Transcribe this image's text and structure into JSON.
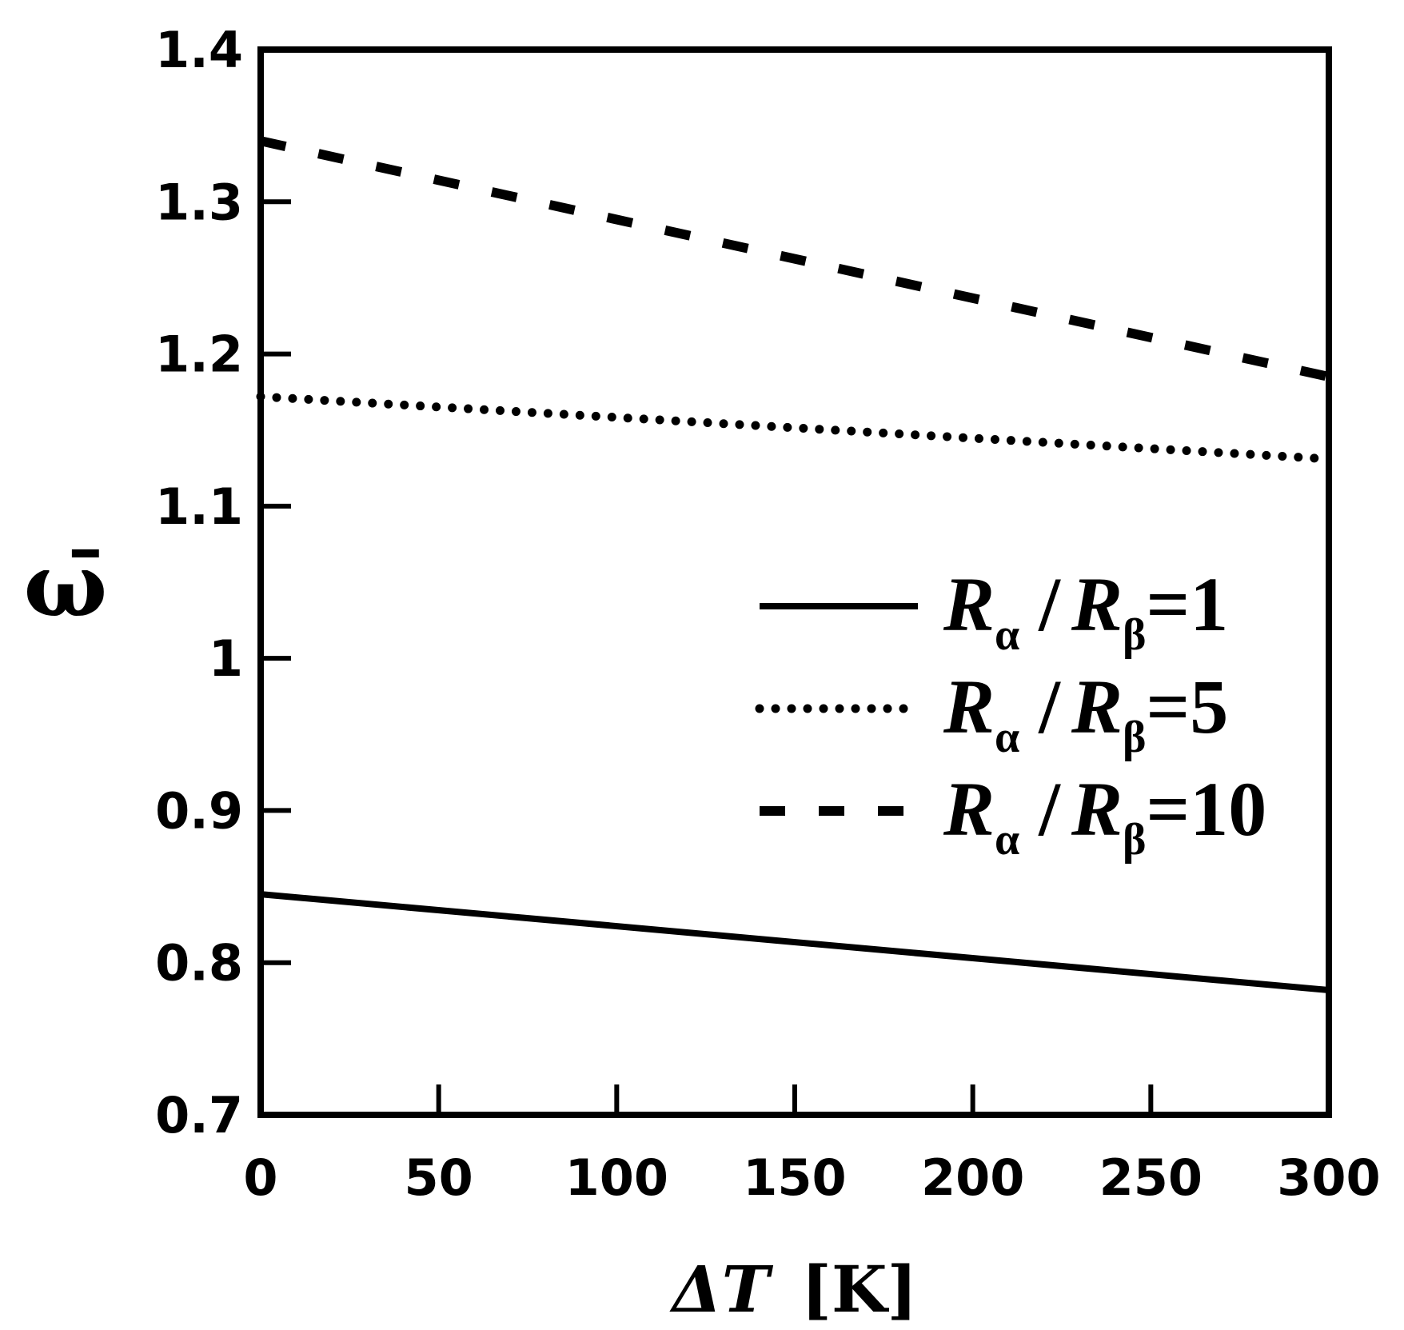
{
  "chart_data": {
    "type": "line",
    "xlabel": {
      "symbol": "ΔT",
      "unit": "[K]"
    },
    "ylabel": "ω̄",
    "xlim": [
      0,
      300
    ],
    "ylim": [
      0.7,
      1.4
    ],
    "xticks": [
      "0",
      "50",
      "100",
      "150",
      "200",
      "250",
      "300"
    ],
    "yticks": [
      "0.7",
      "0.8",
      "0.9",
      "1",
      "1.1",
      "1.2",
      "1.3",
      "1.4"
    ],
    "grid": false,
    "legend_position": "right-middle",
    "series": [
      {
        "name": "Rα / Rβ=1",
        "style": "solid",
        "x": [
          0,
          300
        ],
        "y": [
          0.845,
          0.782
        ]
      },
      {
        "name": "Rα / Rβ=5",
        "style": "dotted",
        "x": [
          0,
          300
        ],
        "y": [
          1.172,
          1.131
        ]
      },
      {
        "name": "Rα / Rβ=10",
        "style": "dashed",
        "x": [
          0,
          300
        ],
        "y": [
          1.34,
          1.185
        ]
      }
    ],
    "legend": [
      {
        "main": "R",
        "sub1": "α",
        "mid": "/",
        "main2": "R",
        "sub2": "β",
        "value": "=1"
      },
      {
        "main": "R",
        "sub1": "α",
        "mid": "/",
        "main2": "R",
        "sub2": "β",
        "value": "=5"
      },
      {
        "main": "R",
        "sub1": "α",
        "mid": "/",
        "main2": "R",
        "sub2": "β",
        "value": "=10"
      }
    ]
  }
}
